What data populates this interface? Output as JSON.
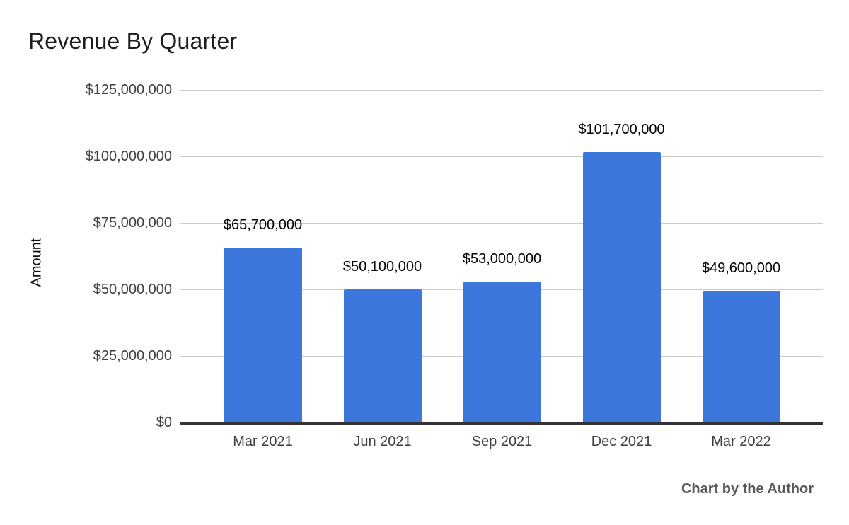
{
  "page": {
    "background": "#ffffff"
  },
  "footer": {
    "credit": "Chart by the Author"
  },
  "chart_data": {
    "type": "bar",
    "title": "Revenue By Quarter",
    "xlabel": "",
    "ylabel": "Amount",
    "categories": [
      "Mar 2021",
      "Jun 2021",
      "Sep 2021",
      "Dec 2021",
      "Mar 2022"
    ],
    "values": [
      65700000,
      50100000,
      53000000,
      101700000,
      49600000
    ],
    "data_labels": [
      "$65,700,000",
      "$50,100,000",
      "$53,000,000",
      "$101,700,000",
      "$49,600,000"
    ],
    "ylim": [
      0,
      125000000
    ],
    "yticks": [
      {
        "value": 0,
        "label": "$0"
      },
      {
        "value": 25000000,
        "label": "$25,000,000"
      },
      {
        "value": 50000000,
        "label": "$50,000,000"
      },
      {
        "value": 75000000,
        "label": "$75,000,000"
      },
      {
        "value": 100000000,
        "label": "$100,000,000"
      },
      {
        "value": 125000000,
        "label": "$125,000,000"
      }
    ],
    "grid": true,
    "legend_position": "none",
    "colors": {
      "bar": "#3c78dc",
      "gridline": "#cccccc",
      "baseline": "#333333"
    }
  }
}
